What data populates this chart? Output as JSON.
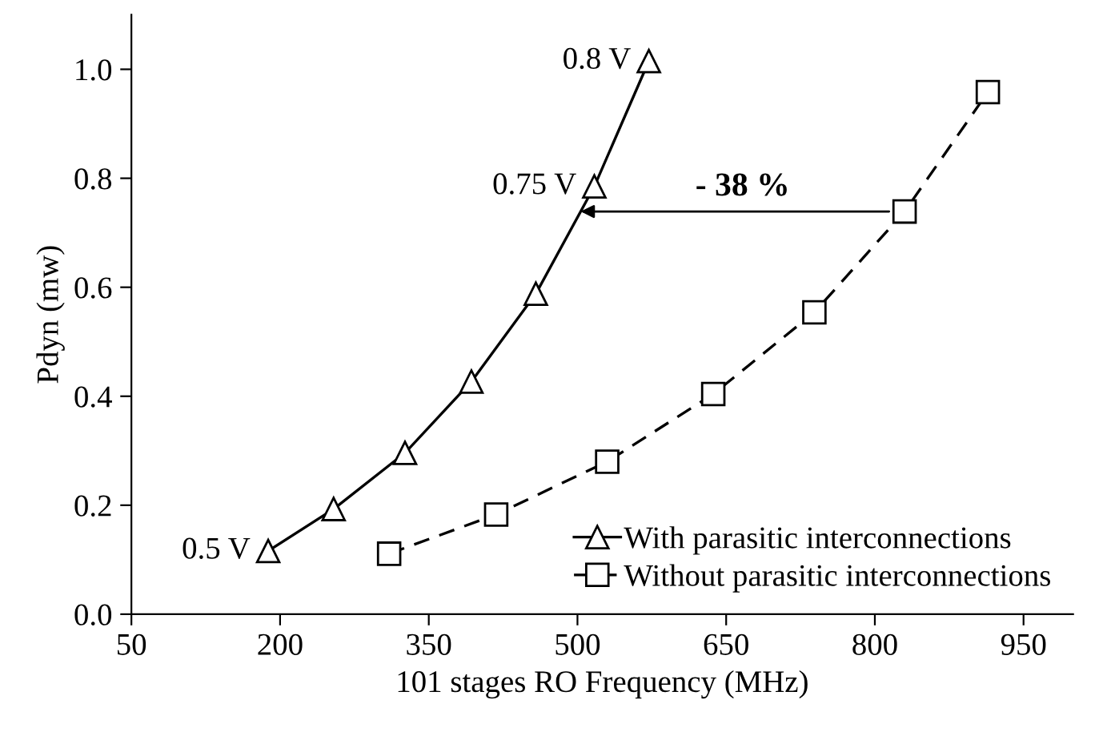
{
  "chart_data": {
    "type": "line",
    "xlabel": "101 stages RO Frequency (MHz)",
    "ylabel": "Pdyn (mw)",
    "xlim": [
      50,
      1000
    ],
    "xticks": [
      50,
      200,
      350,
      500,
      650,
      800,
      950
    ],
    "ylim": [
      0,
      1.1
    ],
    "yticks": [
      {
        "value": 0,
        "label": "0.0"
      },
      {
        "value": 0.2,
        "label": "0.2"
      },
      {
        "value": 0.4,
        "label": "0.4"
      },
      {
        "value": 0.6,
        "label": "0.6"
      },
      {
        "value": 0.8,
        "label": "0.8"
      },
      {
        "value": 1.0,
        "label": "1.0"
      }
    ],
    "grid": false,
    "legend": "bottom right",
    "series": [
      {
        "name": "With parasitic interconnections",
        "color": "#000000",
        "marker": "triangle",
        "line_style": "solid",
        "x": [
          188,
          254,
          326,
          393,
          458,
          517,
          572
        ],
        "values": [
          0.116,
          0.193,
          0.296,
          0.427,
          0.588,
          0.785,
          1.015
        ]
      },
      {
        "name": "Without parasitic interconnections",
        "color": "#000000",
        "marker": "square",
        "line_style": "dashed",
        "x": [
          310,
          418,
          530,
          637,
          739,
          830,
          914
        ],
        "values": [
          0.111,
          0.183,
          0.28,
          0.404,
          0.554,
          0.739,
          0.958
        ]
      }
    ],
    "annotations": [
      {
        "text": "0.5 V",
        "x": 188,
        "y": 0.116
      },
      {
        "text": "0.75 V",
        "x": 517,
        "y": 0.785
      },
      {
        "text": "0.8 V",
        "x": 572,
        "y": 1.015
      },
      "- 38 %"
    ]
  }
}
